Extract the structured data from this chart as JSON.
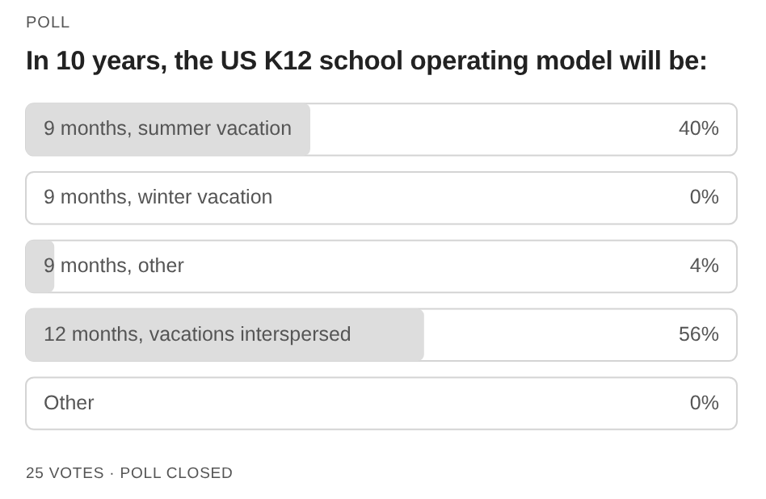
{
  "chart_data": {
    "type": "bar",
    "orientation": "horizontal",
    "subtitle": "POLL",
    "title": "In 10 years, the US K12 school operating model will be:",
    "categories": [
      "9 months, summer vacation",
      "9 months, winter vacation",
      "9 months, other",
      "12 months, vacations interspersed",
      "Other"
    ],
    "values": [
      40,
      0,
      4,
      56,
      0
    ],
    "value_labels": [
      "40%",
      "0%",
      "4%",
      "56%",
      "0%"
    ],
    "color": "#dddddd",
    "xlim": [
      0,
      100
    ],
    "tick_labels": false,
    "legend": false,
    "annotations": [
      "25 VOTES · POLL CLOSED"
    ]
  }
}
